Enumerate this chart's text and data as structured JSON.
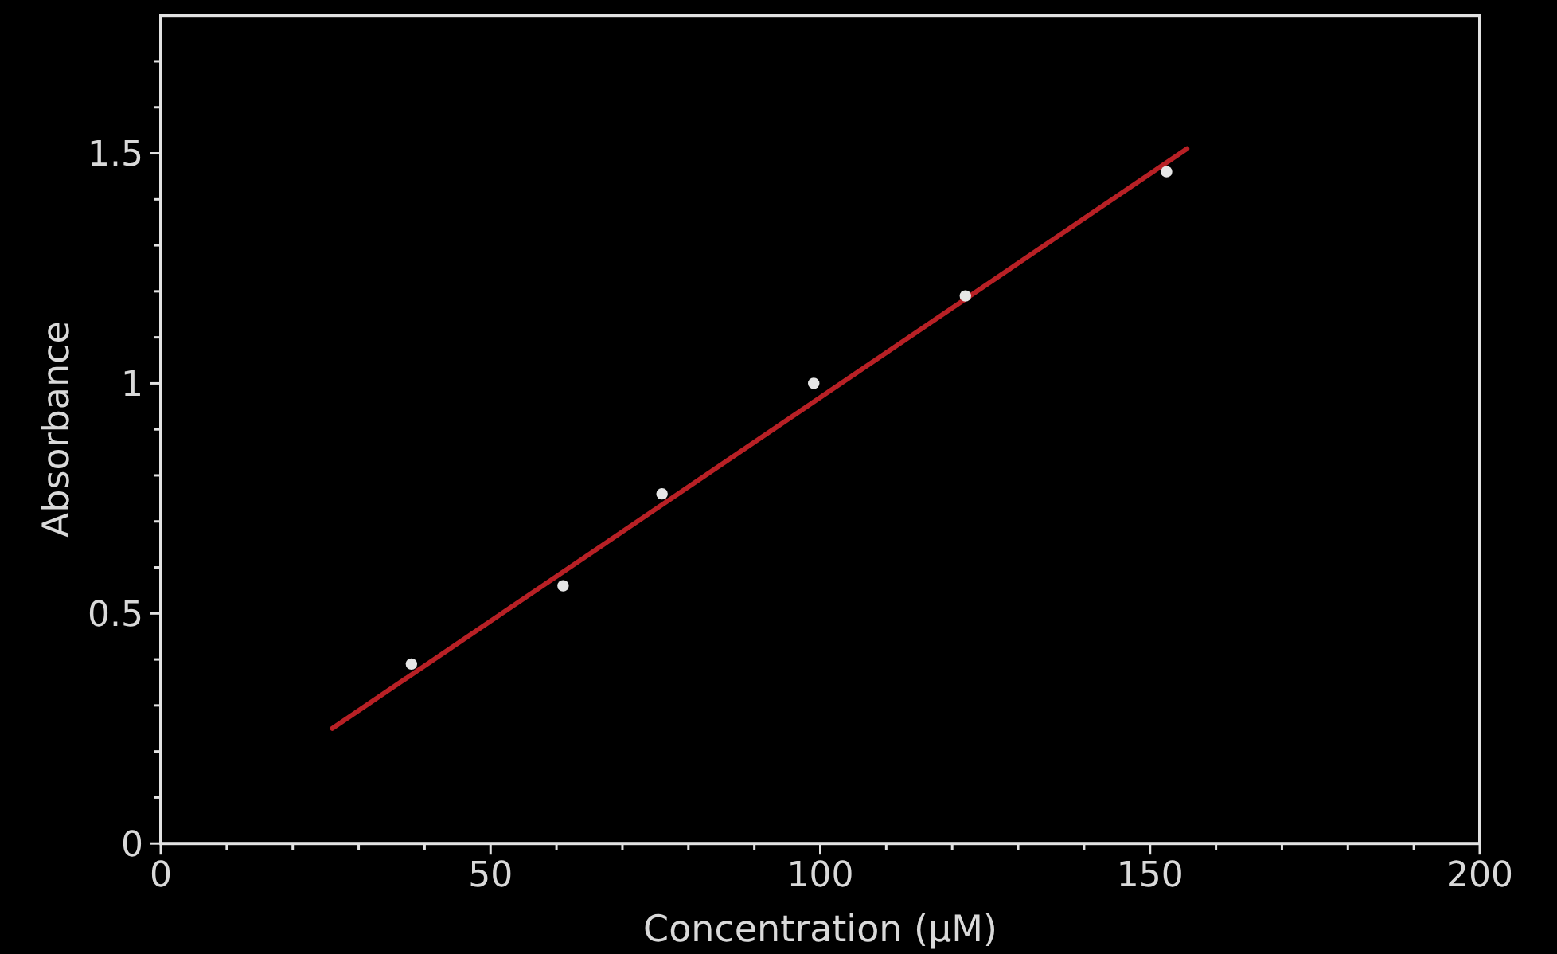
{
  "chart_data": {
    "type": "scatter",
    "xlabel": "Concentration (µM)",
    "ylabel": "Absorbance",
    "xlim": [
      0,
      200
    ],
    "ylim": [
      0,
      1.8
    ],
    "xticks": [
      0,
      {
        "value": 10,
        "label": null
      },
      {
        "value": 20,
        "label": null
      },
      {
        "value": 30,
        "label": null
      },
      {
        "value": 40,
        "label": null
      },
      50,
      {
        "value": 60,
        "label": null
      },
      {
        "value": 70,
        "label": null
      },
      {
        "value": 80,
        "label": null
      },
      {
        "value": 90,
        "label": null
      },
      100,
      {
        "value": 110,
        "label": null
      },
      {
        "value": 120,
        "label": null
      },
      {
        "value": 130,
        "label": null
      },
      {
        "value": 140,
        "label": null
      },
      150,
      {
        "value": 160,
        "label": null
      },
      {
        "value": 170,
        "label": null
      },
      {
        "value": 180,
        "label": null
      },
      {
        "value": 190,
        "label": null
      },
      200
    ],
    "yticks": [
      0,
      {
        "value": 0.1,
        "label": null
      },
      {
        "value": 0.2,
        "label": null
      },
      {
        "value": 0.3,
        "label": null
      },
      {
        "value": 0.4,
        "label": null
      },
      0.5,
      {
        "value": 0.6,
        "label": null
      },
      {
        "value": 0.7,
        "label": null
      },
      {
        "value": 0.8,
        "label": null
      },
      {
        "value": 0.9,
        "label": null
      },
      1,
      {
        "value": 1.1,
        "label": null
      },
      {
        "value": 1.2,
        "label": null
      },
      {
        "value": 1.3,
        "label": null
      },
      {
        "value": 1.4,
        "label": null
      },
      1.5,
      {
        "value": 1.6,
        "label": null
      },
      {
        "value": 1.7,
        "label": null
      }
    ],
    "series": [
      {
        "type": "line",
        "color": "#b82025",
        "line_style": "solid",
        "marker": "none",
        "x": [
          26,
          155.6
        ],
        "values": [
          0.25,
          1.51
        ]
      },
      {
        "color": "#e6e6e6",
        "marker": "circle",
        "x": [
          38,
          61,
          76,
          99,
          122,
          152.5
        ],
        "values": [
          0.39,
          0.56,
          0.76,
          1.0,
          1.19,
          1.46
        ]
      }
    ]
  }
}
